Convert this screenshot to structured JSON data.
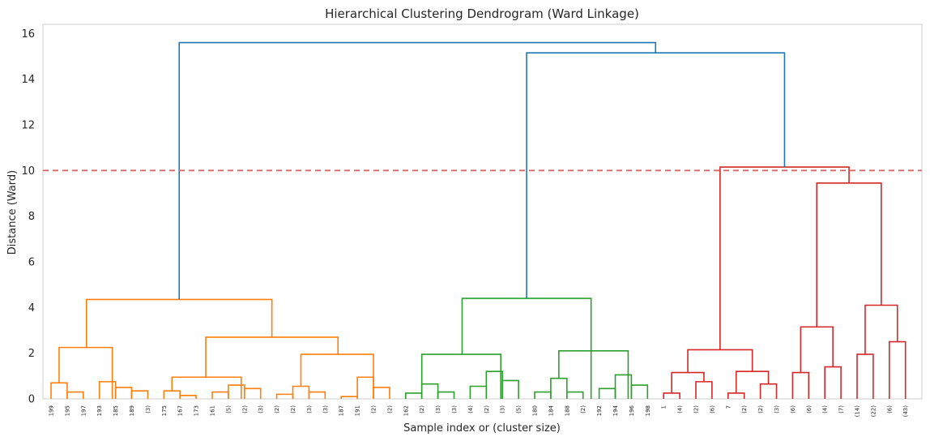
{
  "chart_data": {
    "type": "dendrogram",
    "title": "Hierarchical Clustering Dendrogram (Ward Linkage)",
    "xlabel": "Sample index or (cluster size)",
    "ylabel": "Distance (Ward)",
    "ylim": [
      0,
      16.4
    ],
    "yticks": [
      0,
      2,
      4,
      6,
      8,
      10,
      12,
      14,
      16
    ],
    "grid": false,
    "threshold": {
      "value": 10,
      "color": "#e06666",
      "style": "dashed"
    },
    "colors": {
      "c1": "#ff7f0e",
      "c2": "#2ca02c",
      "c3": "#d62728",
      "above": "#1f77b4",
      "frame": "#cccccc"
    },
    "leaves": [
      "199",
      "195",
      "197",
      "193",
      "185",
      "189",
      "(3)",
      "175",
      "167",
      "173",
      "161",
      "(5)",
      "(2)",
      "(3)",
      "(2)",
      "(2)",
      "(3)",
      "(3)",
      "187",
      "191",
      "(2)",
      "(2)",
      "162",
      "(2)",
      "(3)",
      "(3)",
      "(4)",
      "(2)",
      "(3)",
      "(5)",
      "180",
      "184",
      "188",
      "(2)",
      "192",
      "194",
      "196",
      "198",
      "1",
      "(4)",
      "(2)",
      "(6)",
      "7",
      "(2)",
      "(2)",
      "(3)",
      "(6)",
      "(6)",
      "(4)",
      "(7)",
      "(14)",
      "(22)",
      "(6)",
      "(43)"
    ],
    "links": [
      {
        "a": 0,
        "b": 1,
        "h": 0.7,
        "c": "c1"
      },
      {
        "a": 1,
        "b": 2,
        "h": 0.3,
        "c": "c1"
      },
      {
        "a": 3,
        "b": 4,
        "h": 0.75,
        "c": "c1"
      },
      {
        "a": 4,
        "b": 5,
        "h": 0.5,
        "c": "c1"
      },
      {
        "a": 5,
        "b": 6,
        "h": 0.35,
        "c": "c1"
      },
      {
        "a": 0.5,
        "b": 3.8,
        "h": 2.25,
        "c": "c1"
      },
      {
        "a": 7,
        "b": 8,
        "h": 0.35,
        "c": "c1"
      },
      {
        "a": 8,
        "b": 9,
        "h": 0.15,
        "c": "c1"
      },
      {
        "a": 10,
        "b": 11,
        "h": 0.3,
        "c": "c1"
      },
      {
        "a": 11,
        "b": 12,
        "h": 0.6,
        "c": "c1"
      },
      {
        "a": 12,
        "b": 13,
        "h": 0.45,
        "c": "c1"
      },
      {
        "a": 7.5,
        "b": 11.8,
        "h": 0.95,
        "c": "c1"
      },
      {
        "a": 14,
        "b": 15,
        "h": 0.2,
        "c": "c1"
      },
      {
        "a": 15,
        "b": 16,
        "h": 0.55,
        "c": "c1"
      },
      {
        "a": 16,
        "b": 17,
        "h": 0.3,
        "c": "c1"
      },
      {
        "a": 18,
        "b": 19,
        "h": 0.1,
        "c": "c1"
      },
      {
        "a": 19,
        "b": 20,
        "h": 0.95,
        "c": "c1"
      },
      {
        "a": 20,
        "b": 21,
        "h": 0.5,
        "c": "c1"
      },
      {
        "a": 15.5,
        "b": 20,
        "h": 1.95,
        "c": "c1"
      },
      {
        "a": 9.6,
        "b": 17.8,
        "h": 2.7,
        "c": "c1"
      },
      {
        "a": 2.2,
        "b": 13.7,
        "h": 4.35,
        "c": "c1"
      },
      {
        "a": 22,
        "b": 23,
        "h": 0.25,
        "c": "c2"
      },
      {
        "a": 23,
        "b": 24,
        "h": 0.65,
        "c": "c2"
      },
      {
        "a": 24,
        "b": 25,
        "h": 0.3,
        "c": "c2"
      },
      {
        "a": 26,
        "b": 27,
        "h": 0.55,
        "c": "c2"
      },
      {
        "a": 27,
        "b": 28,
        "h": 1.2,
        "c": "c2"
      },
      {
        "a": 28,
        "b": 29,
        "h": 0.8,
        "c": "c2"
      },
      {
        "a": 23,
        "b": 27.9,
        "h": 1.95,
        "c": "c2"
      },
      {
        "a": 30,
        "b": 31,
        "h": 0.3,
        "c": "c2"
      },
      {
        "a": 31,
        "b": 32,
        "h": 0.9,
        "c": "c2"
      },
      {
        "a": 32,
        "b": 33,
        "h": 0.3,
        "c": "c2"
      },
      {
        "a": 34,
        "b": 35,
        "h": 0.45,
        "c": "c2"
      },
      {
        "a": 35,
        "b": 36,
        "h": 1.05,
        "c": "c2"
      },
      {
        "a": 36,
        "b": 37,
        "h": 0.6,
        "c": "c2"
      },
      {
        "a": 31.5,
        "b": 35.8,
        "h": 2.1,
        "c": "c2"
      },
      {
        "a": 25.5,
        "b": 33.5,
        "h": 4.4,
        "c": "c2"
      },
      {
        "a": 38,
        "b": 39,
        "h": 0.25,
        "c": "c3"
      },
      {
        "a": 40,
        "b": 41,
        "h": 0.75,
        "c": "c3"
      },
      {
        "a": 38.5,
        "b": 40.5,
        "h": 1.15,
        "c": "c3"
      },
      {
        "a": 42,
        "b": 43,
        "h": 0.25,
        "c": "c3"
      },
      {
        "a": 44,
        "b": 45,
        "h": 0.65,
        "c": "c3"
      },
      {
        "a": 42.5,
        "b": 44.5,
        "h": 1.2,
        "c": "c3"
      },
      {
        "a": 39.5,
        "b": 43.5,
        "h": 2.15,
        "c": "c3"
      },
      {
        "a": 46,
        "b": 47,
        "h": 1.15,
        "c": "c3"
      },
      {
        "a": 48,
        "b": 49,
        "h": 1.4,
        "c": "c3"
      },
      {
        "a": 46.5,
        "b": 48.5,
        "h": 3.15,
        "c": "c3"
      },
      {
        "a": 50,
        "b": 51,
        "h": 1.95,
        "c": "c3"
      },
      {
        "a": 52,
        "b": 53,
        "h": 2.5,
        "c": "c3"
      },
      {
        "a": 50.5,
        "b": 52.5,
        "h": 4.1,
        "c": "c3"
      },
      {
        "a": 47.5,
        "b": 51.5,
        "h": 9.45,
        "c": "c3"
      },
      {
        "a": 41.5,
        "b": 49.5,
        "h": 10.15,
        "c": "c3"
      },
      {
        "a": 29.5,
        "b": 45.5,
        "h": 15.15,
        "c": "above"
      },
      {
        "a": 7.95,
        "b": 37.5,
        "h": 15.6,
        "c": "above"
      }
    ]
  }
}
